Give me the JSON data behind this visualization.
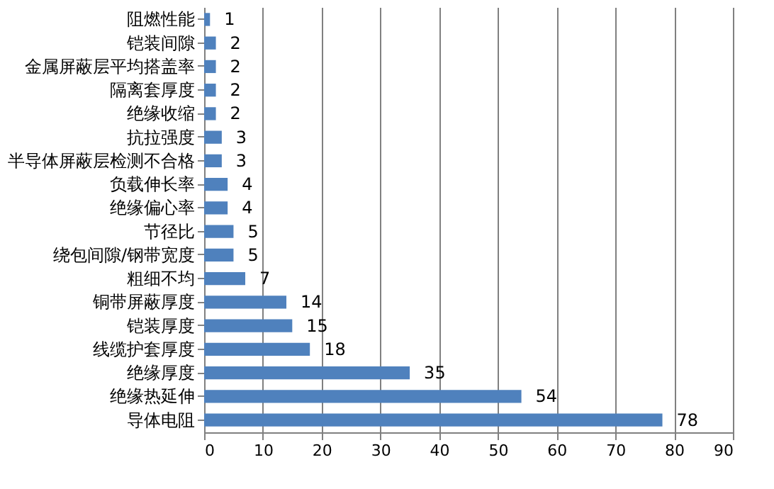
{
  "chart_data": {
    "type": "bar",
    "orientation": "horizontal",
    "categories": [
      "阻燃性能",
      "铠装间隙",
      "金属屏蔽层平均搭盖率",
      "隔离套厚度",
      "绝缘收缩",
      "抗拉强度",
      "半导体屏蔽层检测不合格",
      "负载伸长率",
      "绝缘偏心率",
      "节径比",
      "绕包间隙/钢带宽度",
      "粗细不均",
      "铜带屏蔽厚度",
      "铠装厚度",
      "线缆护套厚度",
      "绝缘厚度",
      "绝缘热延伸",
      "导体电阻"
    ],
    "values": [
      1,
      2,
      2,
      2,
      2,
      3,
      3,
      4,
      4,
      5,
      5,
      7,
      14,
      15,
      18,
      35,
      54,
      78
    ],
    "color": "#4f81bd",
    "xlim": [
      0,
      90
    ],
    "xticks": [
      0,
      10,
      20,
      30,
      40,
      50,
      60,
      70,
      80,
      90
    ],
    "grid": "x",
    "data_labels": true
  }
}
